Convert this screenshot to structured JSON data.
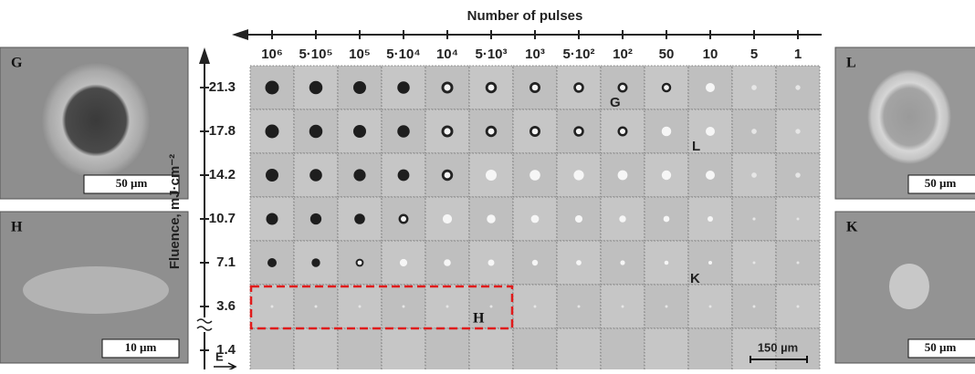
{
  "x_axis": {
    "title": "Number of pulses",
    "labels": [
      "10⁶",
      "5·10⁵",
      "10⁵",
      "5·10⁴",
      "10⁴",
      "5·10³",
      "10³",
      "5·10²",
      "10²",
      "50",
      "10",
      "5",
      "1"
    ]
  },
  "y_axis": {
    "title": "Fluence, mJ·cm⁻²",
    "labels": [
      "21.3",
      "17.8",
      "14.2",
      "10.7",
      "7.1",
      "3.6",
      "1.4"
    ]
  },
  "grid_markers": [
    "G",
    "L",
    "K",
    "H"
  ],
  "scale_bar": "150 µm",
  "field_label": "E",
  "panels": [
    {
      "label": "G",
      "scale": "50 µm"
    },
    {
      "label": "H",
      "scale": "10 µm"
    },
    {
      "label": "L",
      "scale": "50 µm"
    },
    {
      "label": "K",
      "scale": "50 µm"
    }
  ]
}
